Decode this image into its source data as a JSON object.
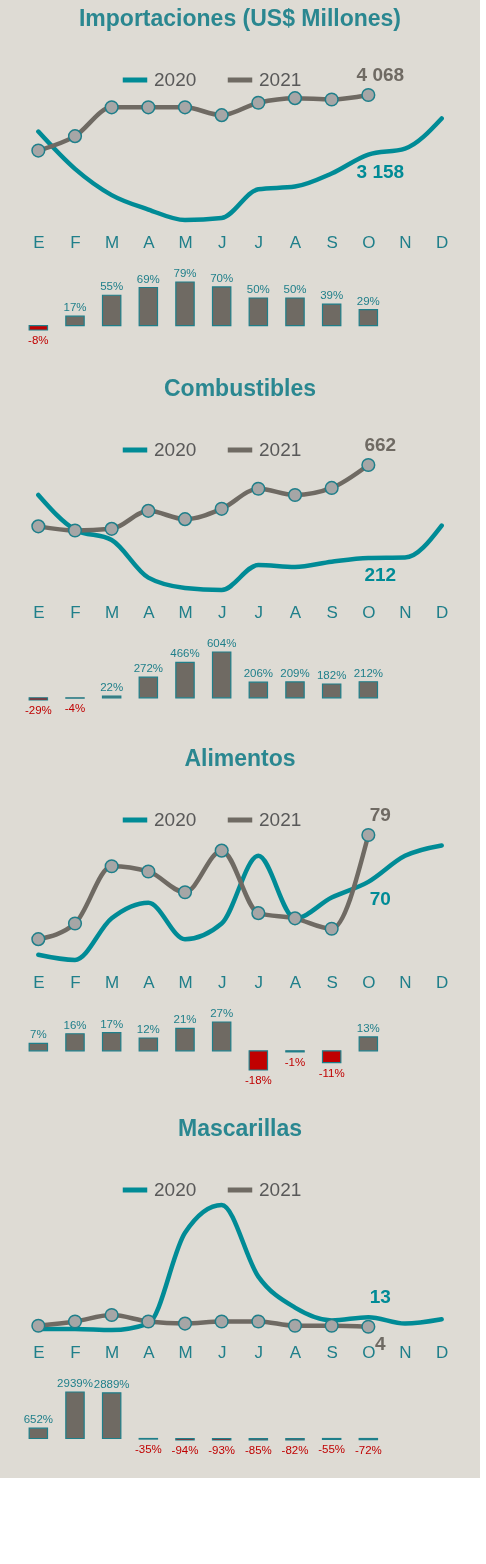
{
  "chart_data": [
    {
      "type": "line",
      "title": "Importaciones (US$ Millones)",
      "categories": [
        "E",
        "F",
        "M",
        "A",
        "M",
        "J",
        "J",
        "A",
        "S",
        "O",
        "N",
        "D"
      ],
      "tick_labels": "x",
      "legend": "top",
      "series": [
        {
          "name": "2020",
          "color": "#008b96",
          "marker": "none",
          "values": [
            3510,
            2940,
            2540,
            2320,
            2160,
            2190,
            2630,
            2670,
            2870,
            3158,
            3250,
            3710
          ],
          "value_labels": [
            null,
            null,
            null,
            null,
            null,
            null,
            null,
            null,
            null,
            "3 158",
            null,
            null
          ]
        },
        {
          "name": "2021",
          "color": "#6f6a63",
          "marker": "circle",
          "values": [
            3220,
            3440,
            3880,
            3880,
            3880,
            3760,
            3950,
            4020,
            4000,
            4068,
            null,
            null
          ],
          "value_labels": [
            null,
            null,
            null,
            null,
            null,
            null,
            null,
            null,
            null,
            "4 068",
            null,
            null
          ]
        }
      ]
    },
    {
      "type": "bar",
      "categories": [
        null,
        null,
        null,
        null,
        null,
        null,
        null,
        null,
        null,
        null,
        null,
        null
      ],
      "values": [
        -8,
        17,
        55,
        69,
        79,
        70,
        50,
        50,
        39,
        29,
        null,
        null
      ],
      "colors": [
        "#c00000",
        "#6f6a63",
        "#6f6a63",
        "#6f6a63",
        "#6f6a63",
        "#6f6a63",
        "#6f6a63",
        "#6f6a63",
        "#6f6a63",
        "#6f6a63",
        "#6f6a63",
        "#6f6a63"
      ],
      "value_labels": [
        "-8%",
        "17%",
        "55%",
        "69%",
        "79%",
        "70%",
        "50%",
        "50%",
        "39%",
        "29%",
        null,
        null
      ]
    },
    {
      "type": "line",
      "title": "Combustibles",
      "categories": [
        "E",
        "F",
        "M",
        "A",
        "M",
        "J",
        "J",
        "A",
        "S",
        "O",
        "N",
        "D"
      ],
      "tick_labels": "x",
      "legend": "top",
      "series": [
        {
          "name": "2020",
          "color": "#008b96",
          "marker": "none",
          "values": [
            517,
            349,
            299,
            117,
            67,
            57,
            178,
            168,
            194,
            212,
            214,
            369
          ],
          "value_labels": [
            null,
            null,
            null,
            null,
            null,
            null,
            null,
            null,
            null,
            "212",
            null,
            null
          ]
        },
        {
          "name": "2021",
          "color": "#6f6a63",
          "marker": "circle",
          "values": [
            365,
            345,
            353,
            440,
            400,
            450,
            547,
            517,
            551,
            662,
            null,
            null
          ],
          "value_labels": [
            null,
            null,
            null,
            null,
            null,
            null,
            null,
            null,
            null,
            "662",
            null,
            null
          ]
        }
      ]
    },
    {
      "type": "bar",
      "categories": [
        null,
        null,
        null,
        null,
        null,
        null,
        null,
        null,
        null,
        null,
        null,
        null
      ],
      "values": [
        -29,
        -4,
        22,
        272,
        466,
        604,
        206,
        209,
        182,
        212,
        null,
        null
      ],
      "colors": [
        "#c00000",
        "#c00000",
        "#6f6a63",
        "#6f6a63",
        "#6f6a63",
        "#6f6a63",
        "#6f6a63",
        "#6f6a63",
        "#6f6a63",
        "#6f6a63",
        "#6f6a63",
        "#6f6a63"
      ],
      "value_labels": [
        "-29%",
        "-4%",
        "22%",
        "272%",
        "466%",
        "604%",
        "206%",
        "209%",
        "182%",
        "212%",
        null,
        null
      ]
    },
    {
      "type": "line",
      "title": "Alimentos",
      "categories": [
        "E",
        "F",
        "M",
        "A",
        "M",
        "J",
        "J",
        "A",
        "S",
        "O",
        "N",
        "D"
      ],
      "tick_labels": "x",
      "legend": "top",
      "series": [
        {
          "name": "2020",
          "color": "#008b96",
          "marker": "none",
          "values": [
            56,
            55,
            63,
            66,
            59,
            62,
            75,
            63,
            67,
            70,
            75,
            77
          ],
          "value_labels": [
            null,
            null,
            null,
            null,
            null,
            null,
            null,
            null,
            null,
            "70",
            null,
            null
          ]
        },
        {
          "name": "2021",
          "color": "#6f6a63",
          "marker": "circle",
          "values": [
            59,
            62,
            73,
            72,
            68,
            76,
            64,
            63,
            61,
            79,
            null,
            null
          ],
          "value_labels": [
            null,
            null,
            null,
            null,
            null,
            null,
            null,
            null,
            null,
            "79",
            null,
            null
          ]
        }
      ]
    },
    {
      "type": "bar",
      "categories": [
        null,
        null,
        null,
        null,
        null,
        null,
        null,
        null,
        null,
        null,
        null,
        null
      ],
      "values": [
        7,
        16,
        17,
        12,
        21,
        27,
        -18,
        -1,
        -11,
        13,
        null,
        null
      ],
      "colors": [
        "#6f6a63",
        "#6f6a63",
        "#6f6a63",
        "#6f6a63",
        "#6f6a63",
        "#6f6a63",
        "#c00000",
        "#c00000",
        "#c00000",
        "#6f6a63",
        "#6f6a63",
        "#6f6a63"
      ],
      "value_labels": [
        "7%",
        "16%",
        "17%",
        "12%",
        "21%",
        "27%",
        "-18%",
        "-1%",
        "-11%",
        "13%",
        null,
        null
      ]
    },
    {
      "type": "line",
      "title": "Mascarillas",
      "categories": [
        "E",
        "F",
        "M",
        "A",
        "M",
        "J",
        "J",
        "A",
        "S",
        "O",
        "N",
        "D"
      ],
      "tick_labels": "x",
      "legend": "top",
      "series": [
        {
          "name": "2020",
          "color": "#008b96",
          "marker": "none",
          "values": [
            2,
            2,
            1,
            7,
            92,
            118,
            51,
            22,
            10,
            13,
            7,
            11
          ],
          "value_labels": [
            null,
            null,
            null,
            null,
            null,
            null,
            null,
            null,
            null,
            "13",
            null,
            null
          ]
        },
        {
          "name": "2021",
          "color": "#6f6a63",
          "marker": "circle",
          "values": [
            5,
            9,
            15,
            9,
            7,
            9,
            9,
            5,
            5,
            4,
            null,
            null
          ],
          "value_labels": [
            null,
            null,
            null,
            null,
            null,
            null,
            null,
            null,
            null,
            "4",
            null,
            null
          ]
        }
      ]
    },
    {
      "type": "bar",
      "categories": [
        null,
        null,
        null,
        null,
        null,
        null,
        null,
        null,
        null,
        null,
        null,
        null
      ],
      "values": [
        652,
        2939,
        2889,
        -35,
        -94,
        -93,
        -85,
        -82,
        -55,
        -72,
        null,
        null
      ],
      "colors": [
        "#6f6a63",
        "#6f6a63",
        "#6f6a63",
        "#c00000",
        "#c00000",
        "#c00000",
        "#c00000",
        "#c00000",
        "#c00000",
        "#c00000",
        "#6f6a63",
        "#6f6a63"
      ],
      "value_labels": [
        "652%",
        "2939%",
        "2889%",
        "-35%",
        "-94%",
        "-93%",
        "-85%",
        "-82%",
        "-55%",
        "-72%",
        null,
        null
      ]
    }
  ]
}
